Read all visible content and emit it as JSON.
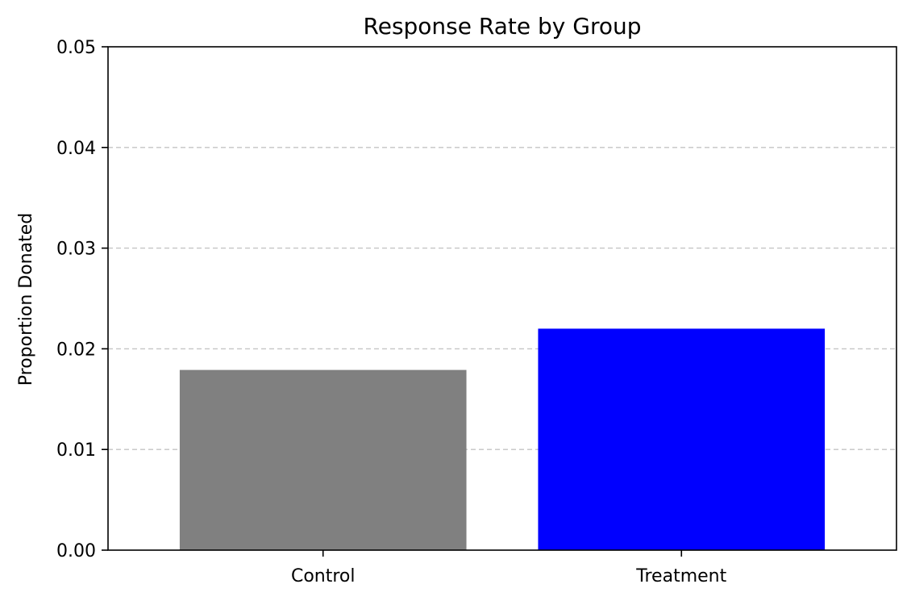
{
  "chart_data": {
    "type": "bar",
    "title": "Response Rate by Group",
    "xlabel": "",
    "ylabel": "Proportion Donated",
    "categories": [
      "Control",
      "Treatment"
    ],
    "values": [
      0.0179,
      0.022
    ],
    "bar_colors": [
      "#808080",
      "#0000ff"
    ],
    "ylim": [
      0,
      0.05
    ],
    "yticks": [
      "0.00",
      "0.01",
      "0.02",
      "0.03",
      "0.04",
      "0.05"
    ],
    "grid": "y-dashed",
    "legend": "none"
  }
}
